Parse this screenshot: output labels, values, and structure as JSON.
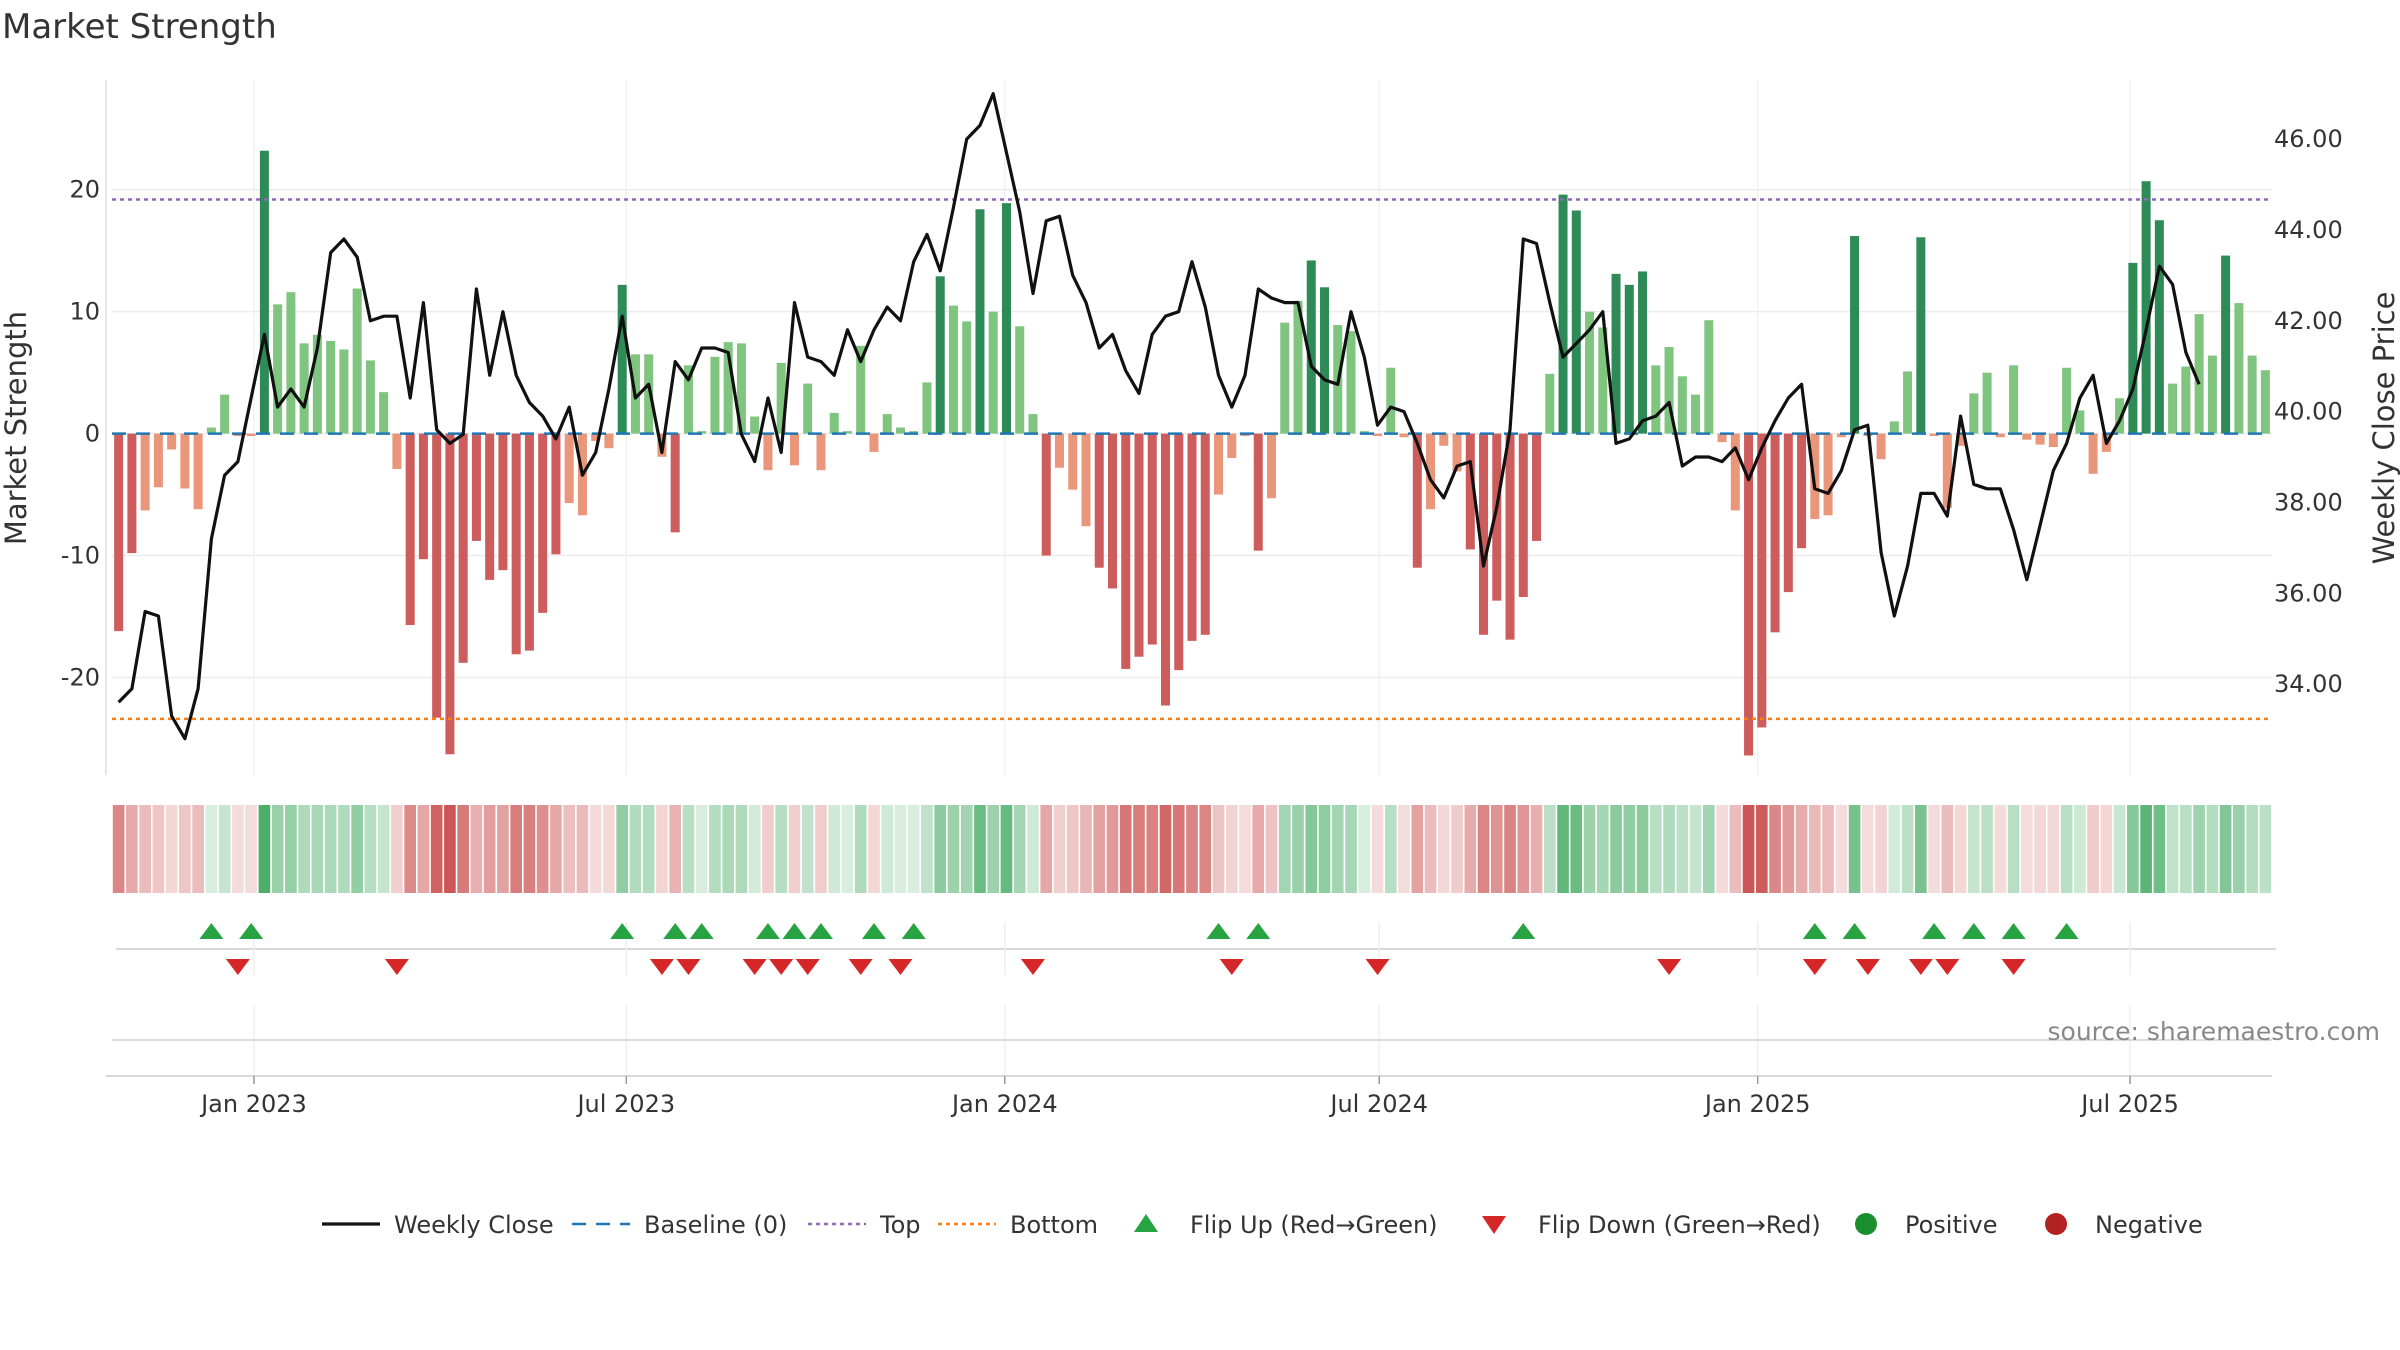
{
  "chart_data": {
    "type": "bar",
    "title": "Market Strength",
    "ylabel": "Market Strength",
    "y2label": "Weekly Close Price",
    "ylim": [
      -28,
      29
    ],
    "y2lim": [
      32,
      47.3
    ],
    "yticks": [
      20,
      10,
      0,
      -10,
      -20
    ],
    "y2ticks": [
      "46.00",
      "44.00",
      "42.00",
      "40.00",
      "38.00",
      "36.00",
      "34.00"
    ],
    "top_level": 19.2,
    "bottom_level": -23.4,
    "x_start": "2022-10-24",
    "x_end": "2025-09-08",
    "x_ticks": [
      {
        "date": "2023-01-01",
        "label": "Jan 2023"
      },
      {
        "date": "2023-07-01",
        "label": "Jul 2023"
      },
      {
        "date": "2024-01-01",
        "label": "Jan 2024"
      },
      {
        "date": "2024-07-01",
        "label": "Jul 2024"
      },
      {
        "date": "2025-01-01",
        "label": "Jan 2025"
      },
      {
        "date": "2025-07-01",
        "label": "Jul 2025"
      }
    ],
    "legend": [
      {
        "label": "Weekly Close",
        "kind": "line"
      },
      {
        "label": "Baseline (0)",
        "kind": "dash"
      },
      {
        "label": "Top",
        "kind": "dot-purple"
      },
      {
        "label": "Bottom",
        "kind": "dot-orange"
      },
      {
        "label": "Flip Up (Red→Green)",
        "kind": "tri-up"
      },
      {
        "label": "Flip Down (Green→Red)",
        "kind": "tri-down"
      },
      {
        "label": "Positive",
        "kind": "circle-green"
      },
      {
        "label": "Negative",
        "kind": "circle-red"
      }
    ],
    "source": "source: sharemaestro.com",
    "strength": [
      -16.2,
      -9.8,
      -6.3,
      -4.4,
      -1.3,
      -4.5,
      -6.2,
      0.5,
      3.2,
      -0.2,
      -0.2,
      23.2,
      10.6,
      11.6,
      7.4,
      8.1,
      7.6,
      6.9,
      11.9,
      6.0,
      3.4,
      -2.9,
      -15.7,
      -10.3,
      -23.3,
      -26.3,
      -18.8,
      -8.8,
      -12.0,
      -11.2,
      -18.1,
      -17.8,
      -14.7,
      -9.9,
      -5.7,
      -6.7,
      -0.6,
      -1.2,
      12.2,
      6.5,
      6.5,
      -1.9,
      -8.1,
      5.6,
      0.2,
      6.3,
      7.5,
      7.4,
      1.4,
      -3.0,
      5.8,
      -2.6,
      4.1,
      -3.0,
      1.7,
      0.2,
      7.2,
      -1.5,
      1.6,
      0.5,
      0.2,
      4.2,
      12.9,
      10.5,
      9.2,
      18.4,
      10.0,
      18.9,
      8.8,
      1.6,
      -10.0,
      -2.8,
      -4.6,
      -7.6,
      -11.0,
      -12.7,
      -19.3,
      -18.3,
      -17.3,
      -22.3,
      -19.4,
      -17.0,
      -16.5,
      -5.0,
      -2.0,
      -0.2,
      -9.6,
      -5.3,
      9.1,
      10.9,
      14.2,
      12.0,
      8.9,
      8.4,
      0.2,
      -0.2,
      5.4,
      -0.3,
      -11.0,
      -6.2,
      -1.0,
      -3.1,
      -9.5,
      -16.5,
      -13.7,
      -16.9,
      -13.4,
      -8.8,
      4.9,
      19.6,
      18.3,
      10.0,
      8.7,
      13.1,
      12.2,
      13.3,
      5.6,
      7.1,
      4.7,
      3.2,
      9.3,
      -0.7,
      -6.3,
      -26.4,
      -24.1,
      -16.3,
      -13.0,
      -9.4,
      -7.0,
      -6.7,
      -0.3,
      16.2,
      -0.2,
      -2.1,
      1.0,
      5.1,
      16.1,
      -0.2,
      -6.1,
      -1.0,
      3.3,
      5.0,
      -0.3,
      5.6,
      -0.5,
      -0.9,
      -1.1,
      5.4,
      1.9,
      -3.3,
      -1.5,
      2.9,
      14.0,
      20.7,
      17.5,
      4.1,
      5.5,
      9.8,
      6.4,
      14.6,
      10.7,
      6.4,
      5.2
    ],
    "close": [
      33.6,
      33.9,
      35.6,
      35.5,
      33.3,
      32.8,
      33.9,
      37.2,
      38.6,
      38.9,
      40.3,
      41.7,
      40.1,
      40.5,
      40.1,
      41.4,
      43.5,
      43.8,
      43.4,
      42.0,
      42.1,
      42.1,
      40.3,
      42.4,
      39.6,
      39.3,
      39.5,
      42.7,
      40.8,
      42.2,
      40.8,
      40.2,
      39.9,
      39.4,
      40.1,
      38.6,
      39.1,
      40.5,
      42.1,
      40.3,
      40.6,
      39.1,
      41.1,
      40.7,
      41.4,
      41.4,
      41.3,
      39.5,
      38.9,
      40.3,
      39.1,
      42.4,
      41.2,
      41.1,
      40.8,
      41.8,
      41.1,
      41.8,
      42.3,
      42.0,
      43.3,
      43.9,
      43.1,
      44.5,
      46.0,
      46.3,
      47.0,
      45.7,
      44.4,
      42.6,
      44.2,
      44.3,
      43.0,
      42.4,
      41.4,
      41.7,
      40.9,
      40.4,
      41.7,
      42.1,
      42.2,
      43.3,
      42.3,
      40.8,
      40.1,
      40.8,
      42.7,
      42.5,
      42.4,
      42.4,
      41.0,
      40.7,
      40.6,
      42.2,
      41.2,
      39.7,
      40.1,
      40.0,
      39.3,
      38.5,
      38.1,
      38.8,
      38.9,
      36.6,
      37.9,
      39.6,
      43.8,
      43.7,
      42.4,
      41.2,
      41.5,
      41.8,
      42.2,
      39.3,
      39.4,
      39.8,
      39.9,
      40.2,
      38.8,
      39.0,
      39.0,
      38.9,
      39.2,
      38.5,
      39.2,
      39.8,
      40.3,
      40.6,
      38.3,
      38.2,
      38.7,
      39.6,
      39.7,
      36.9,
      35.5,
      36.6,
      38.2,
      38.2,
      37.7,
      39.9,
      38.4,
      38.3,
      38.3,
      37.4,
      36.3,
      37.5,
      38.7,
      39.3,
      40.3,
      40.8,
      39.3,
      39.8,
      40.5,
      41.8,
      43.2,
      42.8,
      41.3,
      40.6
    ],
    "flip_up": [
      7,
      10,
      38,
      42,
      44,
      49,
      51,
      53,
      57,
      60,
      83,
      86,
      106,
      128,
      131,
      137,
      140,
      143,
      147
    ],
    "flip_down": [
      9,
      21,
      41,
      43,
      48,
      50,
      52,
      56,
      59,
      69,
      84,
      95,
      117,
      128,
      132,
      136,
      138,
      143
    ],
    "colors": {
      "strong_green": "#2e8b57",
      "light_green": "#7fc47f",
      "strong_red": "#cd5c5c",
      "light_red": "#e9967a",
      "line": "#111111",
      "baseline": "#1f77b4",
      "top": "#9467bd",
      "bottom": "#ff7f0e",
      "tri_up": "#27a342",
      "tri_down": "#d62728",
      "positive": "#1a8f2e",
      "negative": "#b22222"
    }
  }
}
